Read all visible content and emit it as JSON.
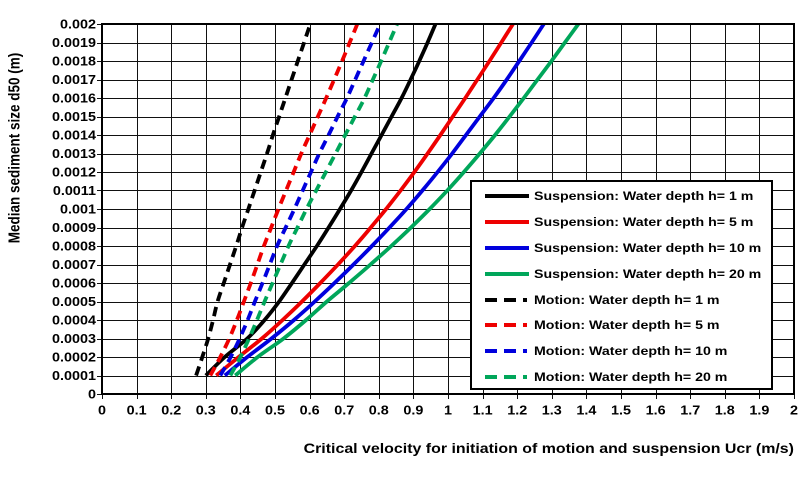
{
  "chart_data": {
    "type": "line",
    "xlabel": "Critical velocity for initiation of motion and suspension Ucr (m/s)",
    "ylabel": "Median sediment size d50 (m)",
    "xlim": [
      0,
      2
    ],
    "ylim": [
      0,
      0.002
    ],
    "grid": true,
    "legend_position": "right-center",
    "x_ticks": [
      "0",
      "0.1",
      "0.2",
      "0.3",
      "0.4",
      "0.5",
      "0.6",
      "0.7",
      "0.8",
      "0.9",
      "1",
      "1.1",
      "1.2",
      "1.3",
      "1.4",
      "1.5",
      "1.6",
      "1.7",
      "1.8",
      "1.9",
      "2"
    ],
    "y_ticks": [
      "0",
      "0.0001",
      "0.0002",
      "0.0003",
      "0.0004",
      "0.0005",
      "0.0006",
      "0.0007",
      "0.0008",
      "0.0009",
      "0.001",
      "0.0011",
      "0.0012",
      "0.0013",
      "0.0014",
      "0.0015",
      "0.0016",
      "0.0017",
      "0.0018",
      "0.0019",
      "0.002"
    ],
    "d50": [
      0.0001,
      0.0002,
      0.0003,
      0.0004,
      0.0005,
      0.0006,
      0.0007,
      0.0008,
      0.0009,
      0.001,
      0.0011,
      0.0012,
      0.0013,
      0.0014,
      0.0015,
      0.0016,
      0.0017,
      0.0018,
      0.0019,
      0.002
    ],
    "series": [
      {
        "id": "suspension-h1",
        "name": "Suspension: Water depth h= 1 m",
        "color": "#000000",
        "style": "solid",
        "values": [
          0.3,
          0.355,
          0.42,
          0.47,
          0.512,
          0.549,
          0.585,
          0.621,
          0.655,
          0.688,
          0.72,
          0.75,
          0.779,
          0.808,
          0.837,
          0.866,
          0.892,
          0.917,
          0.941,
          0.964
        ]
      },
      {
        "id": "suspension-h5",
        "name": "Suspension: Water depth h= 5 m",
        "color": "#ee0000",
        "style": "solid",
        "values": [
          0.33,
          0.395,
          0.462,
          0.522,
          0.578,
          0.631,
          0.682,
          0.731,
          0.777,
          0.821,
          0.863,
          0.903,
          0.941,
          0.978,
          1.014,
          1.05,
          1.085,
          1.12,
          1.154,
          1.188
        ]
      },
      {
        "id": "suspension-h10",
        "name": "Suspension: Water depth h= 10 m",
        "color": "#0000dd",
        "style": "solid",
        "values": [
          0.355,
          0.42,
          0.49,
          0.555,
          0.615,
          0.672,
          0.727,
          0.78,
          0.831,
          0.88,
          0.926,
          0.97,
          1.012,
          1.052,
          1.092,
          1.132,
          1.17,
          1.206,
          1.242,
          1.277
        ]
      },
      {
        "id": "suspension-h20",
        "name": "Suspension: Water depth h= 20 m",
        "color": "#00a65a",
        "style": "solid",
        "values": [
          0.385,
          0.45,
          0.525,
          0.59,
          0.65,
          0.714,
          0.776,
          0.836,
          0.893,
          0.947,
          0.998,
          1.046,
          1.092,
          1.136,
          1.178,
          1.219,
          1.259,
          1.299,
          1.338,
          1.377
        ]
      },
      {
        "id": "motion-h1",
        "name": "Motion: Water depth h= 1 m",
        "color": "#000000",
        "style": "dashed",
        "values": [
          0.272,
          0.29,
          0.307,
          0.321,
          0.334,
          0.352,
          0.37,
          0.388,
          0.405,
          0.423,
          0.441,
          0.459,
          0.477,
          0.494,
          0.512,
          0.53,
          0.548,
          0.566,
          0.584,
          0.602
        ]
      },
      {
        "id": "motion-h5",
        "name": "Motion: Water depth h= 5 m",
        "color": "#ee0000",
        "style": "dashed",
        "values": [
          0.313,
          0.342,
          0.368,
          0.39,
          0.41,
          0.43,
          0.449,
          0.468,
          0.489,
          0.51,
          0.532,
          0.554,
          0.576,
          0.6,
          0.624,
          0.648,
          0.671,
          0.694,
          0.716,
          0.738
        ]
      },
      {
        "id": "motion-h10",
        "name": "Motion: Water depth h= 10 m",
        "color": "#0000dd",
        "style": "dashed",
        "values": [
          0.342,
          0.372,
          0.398,
          0.421,
          0.442,
          0.464,
          0.485,
          0.506,
          0.531,
          0.556,
          0.58,
          0.604,
          0.628,
          0.655,
          0.681,
          0.708,
          0.732,
          0.756,
          0.78,
          0.804
        ]
      },
      {
        "id": "motion-h20",
        "name": "Motion: Water depth h= 20 m",
        "color": "#00a65a",
        "style": "dashed",
        "values": [
          0.371,
          0.4,
          0.425,
          0.448,
          0.47,
          0.493,
          0.516,
          0.539,
          0.565,
          0.591,
          0.619,
          0.647,
          0.675,
          0.703,
          0.731,
          0.759,
          0.783,
          0.807,
          0.83,
          0.853
        ]
      }
    ]
  }
}
